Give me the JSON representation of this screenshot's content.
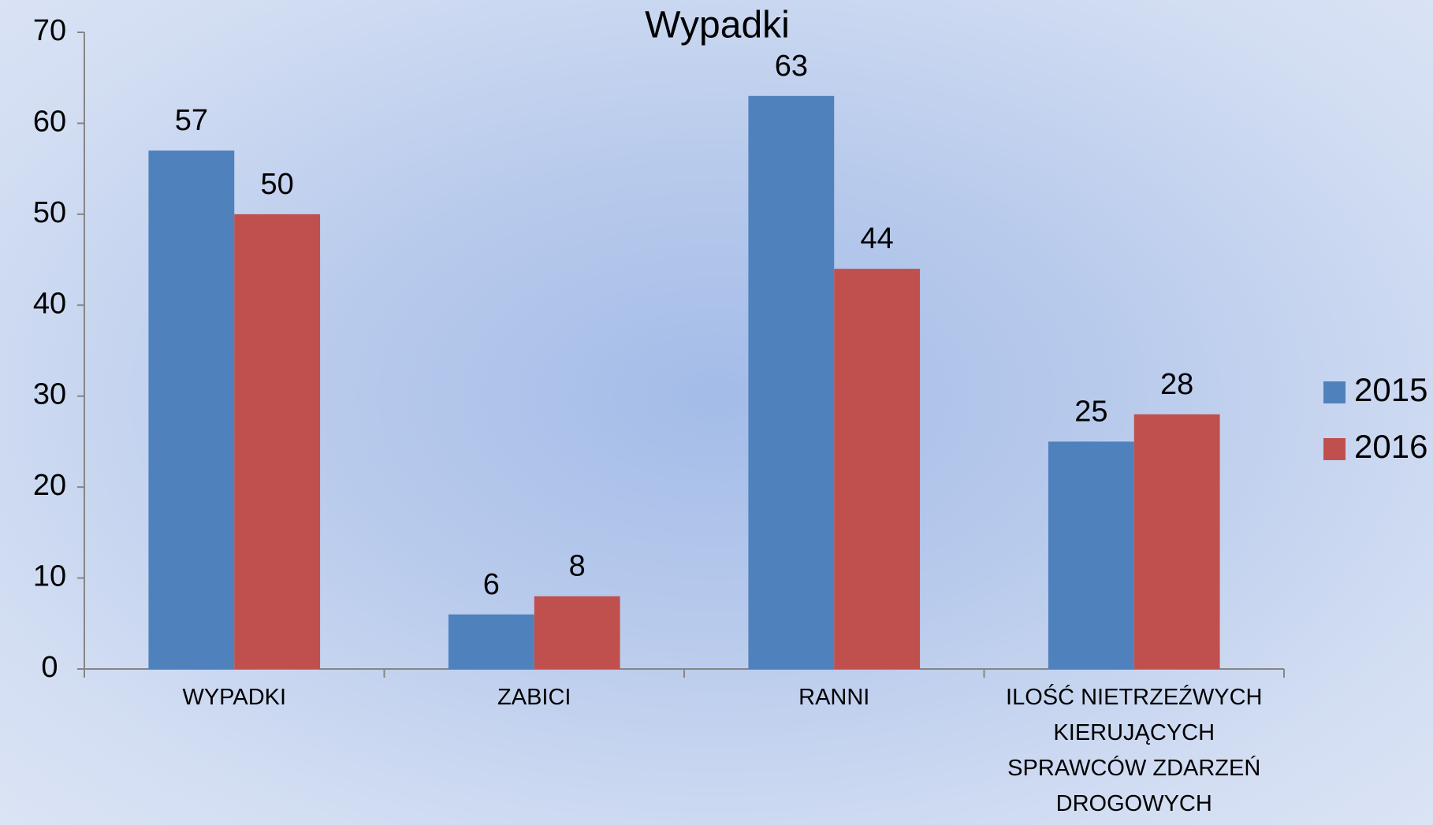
{
  "chart_data": {
    "type": "bar",
    "title": "Wypadki",
    "categories": [
      "WYPADKI",
      "ZABICI",
      "RANNI",
      "ILOŚĆ NIETRZEŹWYCH KIERUJĄCYCH SPRAWCÓW ZDARZEŃ DROGOWYCH"
    ],
    "series": [
      {
        "name": "2015",
        "color": "#4f81bd",
        "values": [
          57,
          6,
          63,
          25
        ]
      },
      {
        "name": "2016",
        "color": "#c0504d",
        "values": [
          50,
          8,
          44,
          28
        ]
      }
    ],
    "ylim": [
      0,
      70
    ],
    "yticks": [
      0,
      10,
      20,
      30,
      40,
      50,
      60,
      70
    ],
    "grid": false,
    "legend": "right"
  }
}
